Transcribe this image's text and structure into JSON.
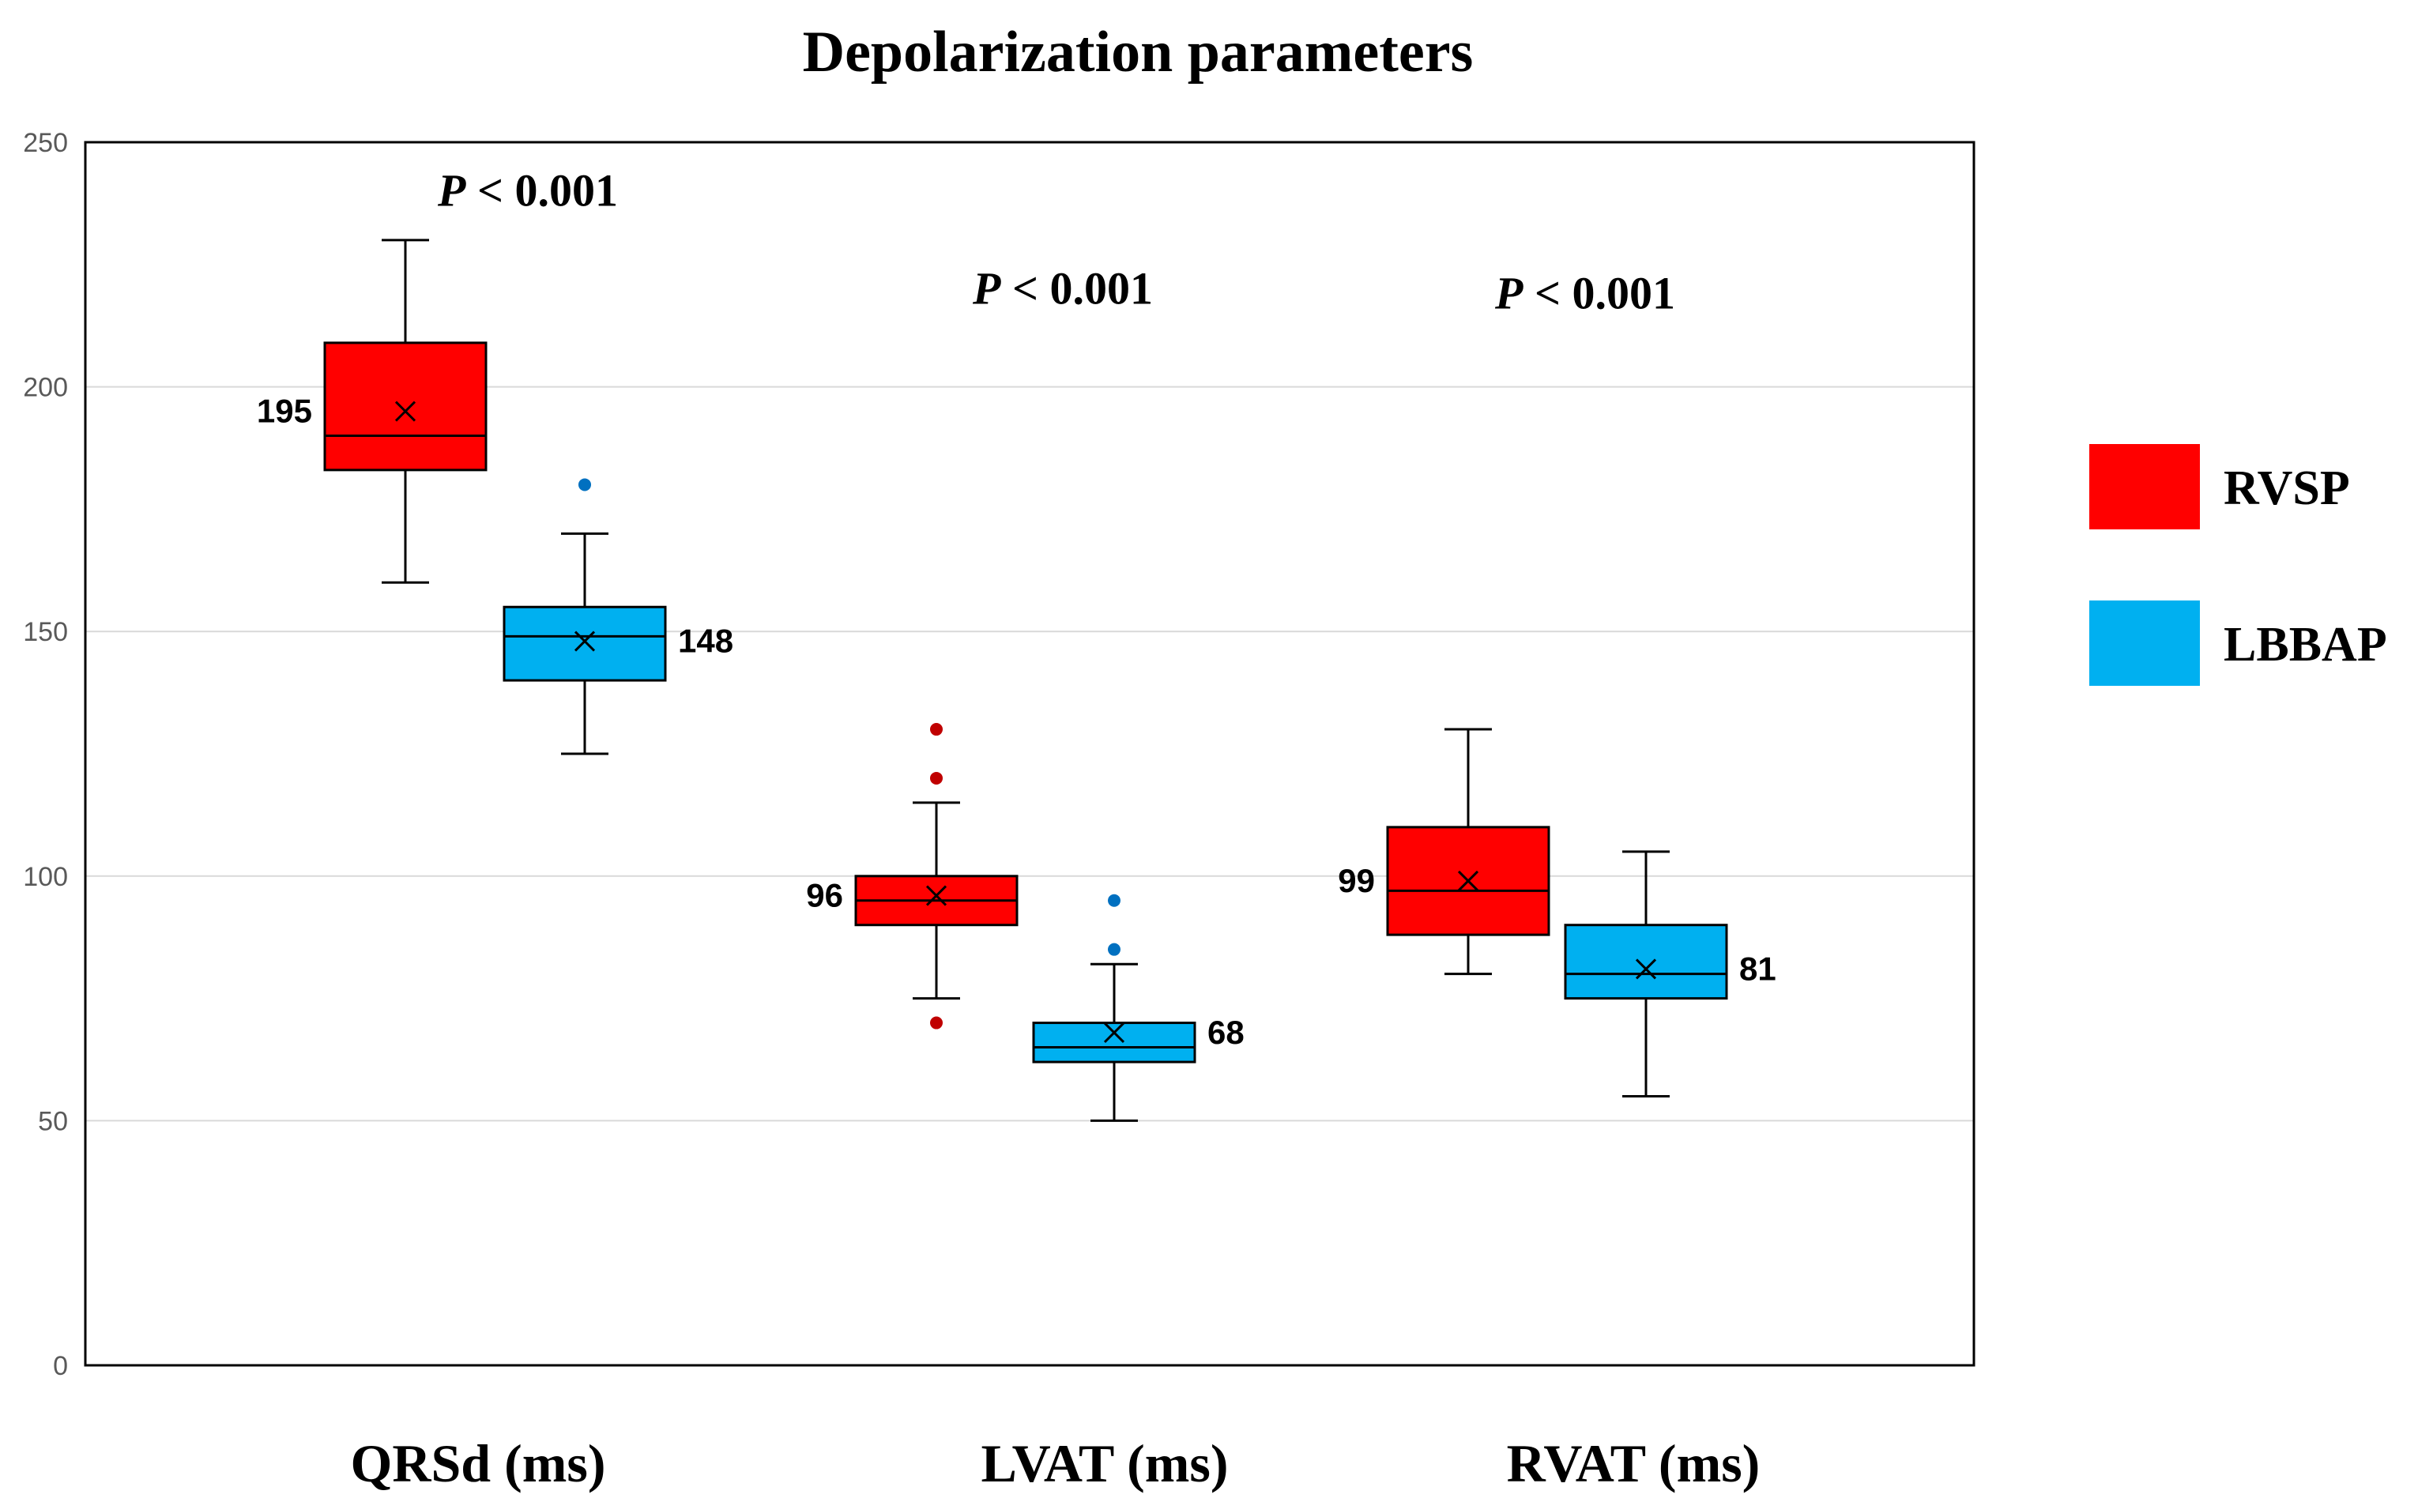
{
  "chart_data": {
    "type": "box",
    "title": "Depolarization parameters",
    "xlabel": "",
    "ylabel": "",
    "ylim": [
      0,
      250
    ],
    "yticks": [
      0,
      50,
      100,
      150,
      200,
      250
    ],
    "grid": true,
    "legend_position": "right",
    "colors": {
      "RVSP": "#ff0000",
      "LBBAP": "#00b0f0",
      "outlier_RVSP": "#c00000",
      "outlier_LBBAP": "#0070c0"
    },
    "series": [
      {
        "name": "RVSP",
        "color": "#ff0000"
      },
      {
        "name": "LBBAP",
        "color": "#00b0f0"
      }
    ],
    "categories": [
      {
        "label": "QRSd (ms)",
        "p_prefix": "P",
        "p_suffix": " < 0.001",
        "boxes": [
          {
            "series": "RVSP",
            "min": 160,
            "q1": 183,
            "median": 190,
            "q3": 209,
            "max": 230,
            "mean": 195,
            "mean_label": "195",
            "outliers": []
          },
          {
            "series": "LBBAP",
            "min": 125,
            "q1": 140,
            "median": 149,
            "q3": 155,
            "max": 170,
            "mean": 148,
            "mean_label": "148",
            "outliers": [
              180
            ]
          }
        ]
      },
      {
        "label": "LVAT (ms)",
        "p_prefix": "P",
        "p_suffix": " < 0.001",
        "boxes": [
          {
            "series": "RVSP",
            "min": 75,
            "q1": 90,
            "median": 95,
            "q3": 100,
            "max": 115,
            "mean": 96,
            "mean_label": "96",
            "outliers": [
              130,
              120,
              70
            ]
          },
          {
            "series": "LBBAP",
            "min": 50,
            "q1": 62,
            "median": 65,
            "q3": 70,
            "max": 82,
            "mean": 68,
            "mean_label": "68",
            "outliers": [
              95,
              85
            ]
          }
        ]
      },
      {
        "label": "RVAT (ms)",
        "p_prefix": "P",
        "p_suffix": " < 0.001",
        "boxes": [
          {
            "series": "RVSP",
            "min": 80,
            "q1": 88,
            "median": 97,
            "q3": 110,
            "max": 130,
            "mean": 99,
            "mean_label": "99",
            "outliers": []
          },
          {
            "series": "LBBAP",
            "min": 55,
            "q1": 75,
            "median": 80,
            "q3": 90,
            "max": 105,
            "mean": 81,
            "mean_label": "81",
            "outliers": []
          }
        ]
      }
    ]
  }
}
